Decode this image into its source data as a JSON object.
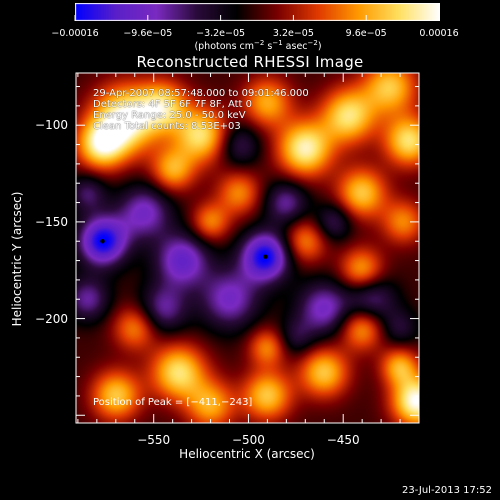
{
  "chart_data": {
    "type": "heatmap",
    "title": "Reconstructed RHESSI Image",
    "xlabel": "Heliocentric X (arcsec)",
    "ylabel": "Heliocentric Y (arcsec)",
    "xlim": [
      -591,
      -410
    ],
    "ylim": [
      -254,
      -73
    ],
    "x_ticks": [
      -550,
      -500,
      -450
    ],
    "x_tick_labels": [
      "−550",
      "−500",
      "−450"
    ],
    "y_ticks": [
      -100,
      -150,
      -200
    ],
    "y_tick_labels": [
      "−100",
      "−150",
      "−200"
    ],
    "colorbar": {
      "range": [
        -0.00016,
        0.00016
      ],
      "tick_values": [
        -0.00016,
        -9.6e-05,
        -3.2e-05,
        3.2e-05,
        9.6e-05,
        0.00016
      ],
      "tick_labels": [
        "−0.00016",
        "−9.6e−05",
        "−3.2e−05",
        "3.2e−05",
        "9.6e−05",
        "0.00016"
      ],
      "units_main": "(photons cm",
      "units_exp1": "−2",
      "units_mid": " s",
      "units_exp2": "−1",
      "units_mid2": " asec",
      "units_exp3": "−2",
      "units_end": ")",
      "colormap": [
        "#0000ff",
        "#5a1fc8",
        "#7a2ac0",
        "#2a0a3a",
        "#000000",
        "#7a0000",
        "#e03a00",
        "#ff9a00",
        "#ffe060",
        "#ffffff"
      ]
    },
    "annotations": [
      "29-Apr-2007 08:57:48.000 to 09:01:46.000",
      "Detectors: 4F 5F 6F 7F 8F, Att 0",
      "Energy Range: 25.0 - 50.0 keV",
      "Clean    Total counts: 8.53E+03"
    ],
    "peak_label": "Position of Peak = [−411,−243]",
    "peak": [
      -411,
      -243
    ],
    "minima_points": [
      [
        -577,
        -160
      ],
      [
        -491,
        -168
      ]
    ],
    "blobs": [
      {
        "x": -565,
        "y": -97,
        "v": 1.0,
        "s": 12
      },
      {
        "x": -578,
        "y": -110,
        "v": 0.8,
        "s": 9
      },
      {
        "x": -545,
        "y": -90,
        "v": 0.7,
        "s": 9
      },
      {
        "x": -525,
        "y": -105,
        "v": 0.8,
        "s": 10
      },
      {
        "x": -540,
        "y": -123,
        "v": 0.6,
        "s": 8
      },
      {
        "x": -490,
        "y": -88,
        "v": 0.6,
        "s": 9
      },
      {
        "x": -470,
        "y": -112,
        "v": 0.9,
        "s": 10
      },
      {
        "x": -447,
        "y": -95,
        "v": 0.8,
        "s": 10
      },
      {
        "x": -425,
        "y": -80,
        "v": 0.7,
        "s": 10
      },
      {
        "x": -415,
        "y": -108,
        "v": 0.8,
        "s": 9
      },
      {
        "x": -440,
        "y": -135,
        "v": 0.7,
        "s": 9
      },
      {
        "x": -505,
        "y": -135,
        "v": 0.5,
        "s": 8
      },
      {
        "x": -520,
        "y": -150,
        "v": 0.5,
        "s": 7
      },
      {
        "x": -470,
        "y": -160,
        "v": 0.5,
        "s": 8
      },
      {
        "x": -440,
        "y": -175,
        "v": 0.6,
        "s": 8
      },
      {
        "x": -418,
        "y": -150,
        "v": 0.5,
        "s": 8
      },
      {
        "x": -560,
        "y": -205,
        "v": 0.5,
        "s": 8
      },
      {
        "x": -537,
        "y": -228,
        "v": 0.8,
        "s": 10
      },
      {
        "x": -570,
        "y": -240,
        "v": 0.7,
        "s": 9
      },
      {
        "x": -520,
        "y": -245,
        "v": 0.6,
        "s": 9
      },
      {
        "x": -490,
        "y": -215,
        "v": 0.5,
        "s": 7
      },
      {
        "x": -490,
        "y": -240,
        "v": 0.7,
        "s": 9
      },
      {
        "x": -460,
        "y": -228,
        "v": 0.7,
        "s": 9
      },
      {
        "x": -440,
        "y": -205,
        "v": 0.6,
        "s": 8
      },
      {
        "x": -411,
        "y": -243,
        "v": 1.0,
        "s": 9
      },
      {
        "x": -420,
        "y": -225,
        "v": 0.6,
        "s": 7
      },
      {
        "x": -577,
        "y": -160,
        "v": -1.0,
        "s": 9
      },
      {
        "x": -491,
        "y": -168,
        "v": -1.0,
        "s": 9
      },
      {
        "x": -555,
        "y": -145,
        "v": -0.6,
        "s": 10
      },
      {
        "x": -535,
        "y": -170,
        "v": -0.7,
        "s": 10
      },
      {
        "x": -510,
        "y": -190,
        "v": -0.6,
        "s": 11
      },
      {
        "x": -460,
        "y": -195,
        "v": -0.6,
        "s": 10
      },
      {
        "x": -435,
        "y": -190,
        "v": -0.5,
        "s": 9
      },
      {
        "x": -545,
        "y": -195,
        "v": -0.5,
        "s": 9
      },
      {
        "x": -585,
        "y": -190,
        "v": -0.5,
        "s": 8
      },
      {
        "x": -505,
        "y": -110,
        "v": -0.4,
        "s": 8
      },
      {
        "x": -480,
        "y": -140,
        "v": -0.5,
        "s": 8
      },
      {
        "x": -455,
        "y": -150,
        "v": -0.4,
        "s": 7
      },
      {
        "x": -585,
        "y": -135,
        "v": -0.4,
        "s": 7
      },
      {
        "x": -475,
        "y": -210,
        "v": -0.3,
        "s": 7
      },
      {
        "x": -420,
        "y": -205,
        "v": -0.3,
        "s": 7
      }
    ]
  },
  "footer": {
    "timestamp": "23-Jul-2013 17:52"
  }
}
